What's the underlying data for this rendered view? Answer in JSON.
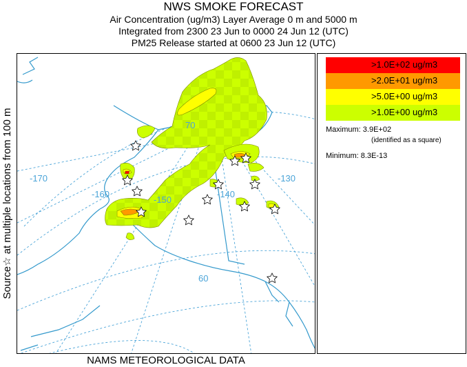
{
  "header": {
    "title": "NWS SMOKE FORECAST",
    "line2": "Air Concentration (ug/m3) Layer Average    0 m and  5000 m",
    "line3": "Integrated from 2300 23 Jun to 0000 24 Jun 12 (UTC)",
    "line4": "PM25 Release started at 0600 23 Jun 12 (UTC)"
  },
  "side_label": "Source☆ at multiple locations   from   100 m",
  "footer": "NAMS METEOROLOGICAL DATA",
  "map": {
    "lat_labels": [
      "70",
      "60"
    ],
    "lon_labels": [
      "-170",
      "-160",
      "-150",
      "-140",
      "-130"
    ],
    "grid_color": "#4aa4d8",
    "coast_color": "#3399cc"
  },
  "legend": {
    "items": [
      {
        "label": ">1.0E+02 ug/m3",
        "color": "#ff0000"
      },
      {
        "label": ">2.0E+01 ug/m3",
        "color": "#ff9900"
      },
      {
        "label": ">5.0E+00 ug/m3",
        "color": "#ffff00"
      },
      {
        "label": ">1.0E+00 ug/m3",
        "color": "#ccff00"
      }
    ],
    "maximum": "Maximum: 3.9E+02",
    "maximum_note": "(identified as a square)",
    "minimum": "Minimum: 8.3E-13"
  }
}
